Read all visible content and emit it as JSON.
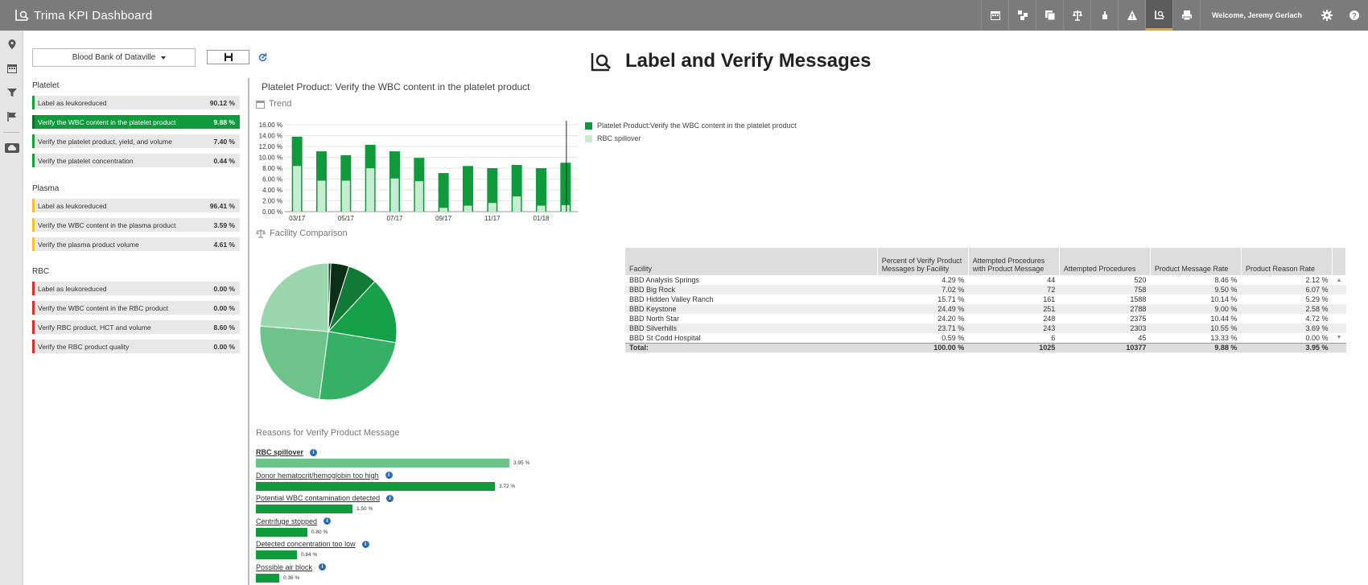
{
  "app": {
    "title": "Trima KPI Dashboard",
    "welcome": "Welcome, Jeremy Gerlach"
  },
  "nav_icons": [
    "calendar-icon",
    "compare-icon",
    "copy-icon",
    "balance-icon",
    "hand-icon",
    "warning-icon",
    "label-verify-icon",
    "printer-icon"
  ],
  "sidebar": {
    "facility_select": "Blood Bank of Dataville",
    "groups": [
      {
        "name": "Platelet",
        "color": "#1a9c3e",
        "items": [
          {
            "label": "Label as leukoreduced",
            "value": "90.12 %"
          },
          {
            "label": "Verify the WBC content in the platelet product",
            "value": "9.88 %",
            "selected": true
          },
          {
            "label": "Verify the platelet product, yield, and volume",
            "value": "7.40 %"
          },
          {
            "label": "Verify the platelet concentration",
            "value": "0.44 %"
          }
        ]
      },
      {
        "name": "Plasma",
        "color": "#f2c230",
        "items": [
          {
            "label": "Label as leukoreduced",
            "value": "96.41 %"
          },
          {
            "label": "Verify the WBC content in the plasma product",
            "value": "3.59 %"
          },
          {
            "label": "Verify the plasma product volume",
            "value": "4.61 %"
          }
        ]
      },
      {
        "name": "RBC",
        "color": "#e02b2b",
        "items": [
          {
            "label": "Label as leukoreduced",
            "value": "0.00 %"
          },
          {
            "label": "Verify the WBC content in the RBC product",
            "value": "0.00 %"
          },
          {
            "label": "Verify RBC product, HCT and volume",
            "value": "8.60 %"
          },
          {
            "label": "Verify the RBC product quality",
            "value": "0.00 %"
          }
        ]
      }
    ]
  },
  "page": {
    "title": "Label and Verify Messages"
  },
  "panel": {
    "title": "Platelet Product: Verify the WBC content in the platelet product",
    "trend_label": "Trend",
    "facility_label": "Facility Comparison",
    "reasons_label": "Reasons for Verify Product Message"
  },
  "chart_data": [
    {
      "type": "bar",
      "ylim": [
        0,
        16
      ],
      "yticks": [
        "0.00 %",
        "2.00 %",
        "4.00 %",
        "6.00 %",
        "8.00 %",
        "10.00 %",
        "12.00 %",
        "14.00 %",
        "16.00 %"
      ],
      "xticks": [
        "03/17",
        "05/17",
        "07/17",
        "09/17",
        "11/17",
        "01/18"
      ],
      "series": [
        {
          "name": "Platelet Product:Verify the WBC content in the platelet product",
          "color": "#0f9a3c",
          "values": [
            13.8,
            11.1,
            10.4,
            12.3,
            11.1,
            9.9,
            7.1,
            8.4,
            8.0,
            8.6,
            8.0,
            9.0
          ]
        },
        {
          "name": "RBC spillover",
          "color": "#c6ecd1",
          "values": [
            8.4,
            5.7,
            5.7,
            8.0,
            6.1,
            5.6,
            0.7,
            1.1,
            1.6,
            2.8,
            1.1,
            1.2
          ]
        }
      ]
    },
    {
      "type": "pie",
      "slices": [
        {
          "label": "BBD St Codd Hospital",
          "value": 0.59,
          "color": "#0a3d1f"
        },
        {
          "label": "BBD Analysis Springs",
          "value": 4.29,
          "color": "#0a2e16"
        },
        {
          "label": "BBD Big Rock",
          "value": 7.02,
          "color": "#117a35"
        },
        {
          "label": "BBD Hidden Valley Ranch",
          "value": 15.71,
          "color": "#16a048"
        },
        {
          "label": "BBD Keystone",
          "value": 24.49,
          "color": "#35b064"
        },
        {
          "label": "BBD North Star",
          "value": 24.2,
          "color": "#6cc48a"
        },
        {
          "label": "BBD Silverhills",
          "value": 23.71,
          "color": "#9ad7ad"
        }
      ]
    }
  ],
  "table": {
    "headers": [
      "Facility",
      "Percent of Verify Product Messages by Facility",
      "Attempted Procedures with Product Message",
      "Attempted Procedures",
      "Product Message Rate",
      "Product Reason Rate"
    ],
    "rows": [
      [
        "BBD Analysis Springs",
        "4.29 %",
        "44",
        "520",
        "8.46 %",
        "2.12 %"
      ],
      [
        "BBD Big Rock",
        "7.02 %",
        "72",
        "758",
        "9.50 %",
        "6.07 %"
      ],
      [
        "BBD Hidden Valley Ranch",
        "15.71 %",
        "161",
        "1588",
        "10.14 %",
        "5.29 %"
      ],
      [
        "BBD Keystone",
        "24.49 %",
        "251",
        "2788",
        "9.00 %",
        "2.58 %"
      ],
      [
        "BBD North Star",
        "24.20 %",
        "248",
        "2375",
        "10.44 %",
        "4.72 %"
      ],
      [
        "BBD Silverhills",
        "23.71 %",
        "243",
        "2303",
        "10.55 %",
        "3.69 %"
      ],
      [
        "BBD St Codd Hospital",
        "0.59 %",
        "6",
        "45",
        "13.33 %",
        "0.00 %"
      ]
    ],
    "total": [
      "Total:",
      "100.00 %",
      "1025",
      "10377",
      "9.88 %",
      "3.95 %"
    ]
  },
  "reasons": [
    {
      "label": "RBC spillover",
      "value": 3.95,
      "pct": "3.95 %",
      "color": "#6cc48a",
      "bold": true
    },
    {
      "label": "Donor hematocrit/hemoglobin too high",
      "value": 3.72,
      "pct": "3.72 %",
      "color": "#0f9a3c"
    },
    {
      "label": "Potential WBC contamination detected",
      "value": 1.5,
      "pct": "1.50 %",
      "color": "#0f9a3c"
    },
    {
      "label": "Centrifuge stopped",
      "value": 0.8,
      "pct": "0.80 %",
      "color": "#0f9a3c"
    },
    {
      "label": "Detected concentration too low",
      "value": 0.64,
      "pct": "0.64 %",
      "color": "#0f9a3c"
    },
    {
      "label": "Possible air block",
      "value": 0.36,
      "pct": "0.36 %",
      "color": "#0f9a3c"
    }
  ]
}
